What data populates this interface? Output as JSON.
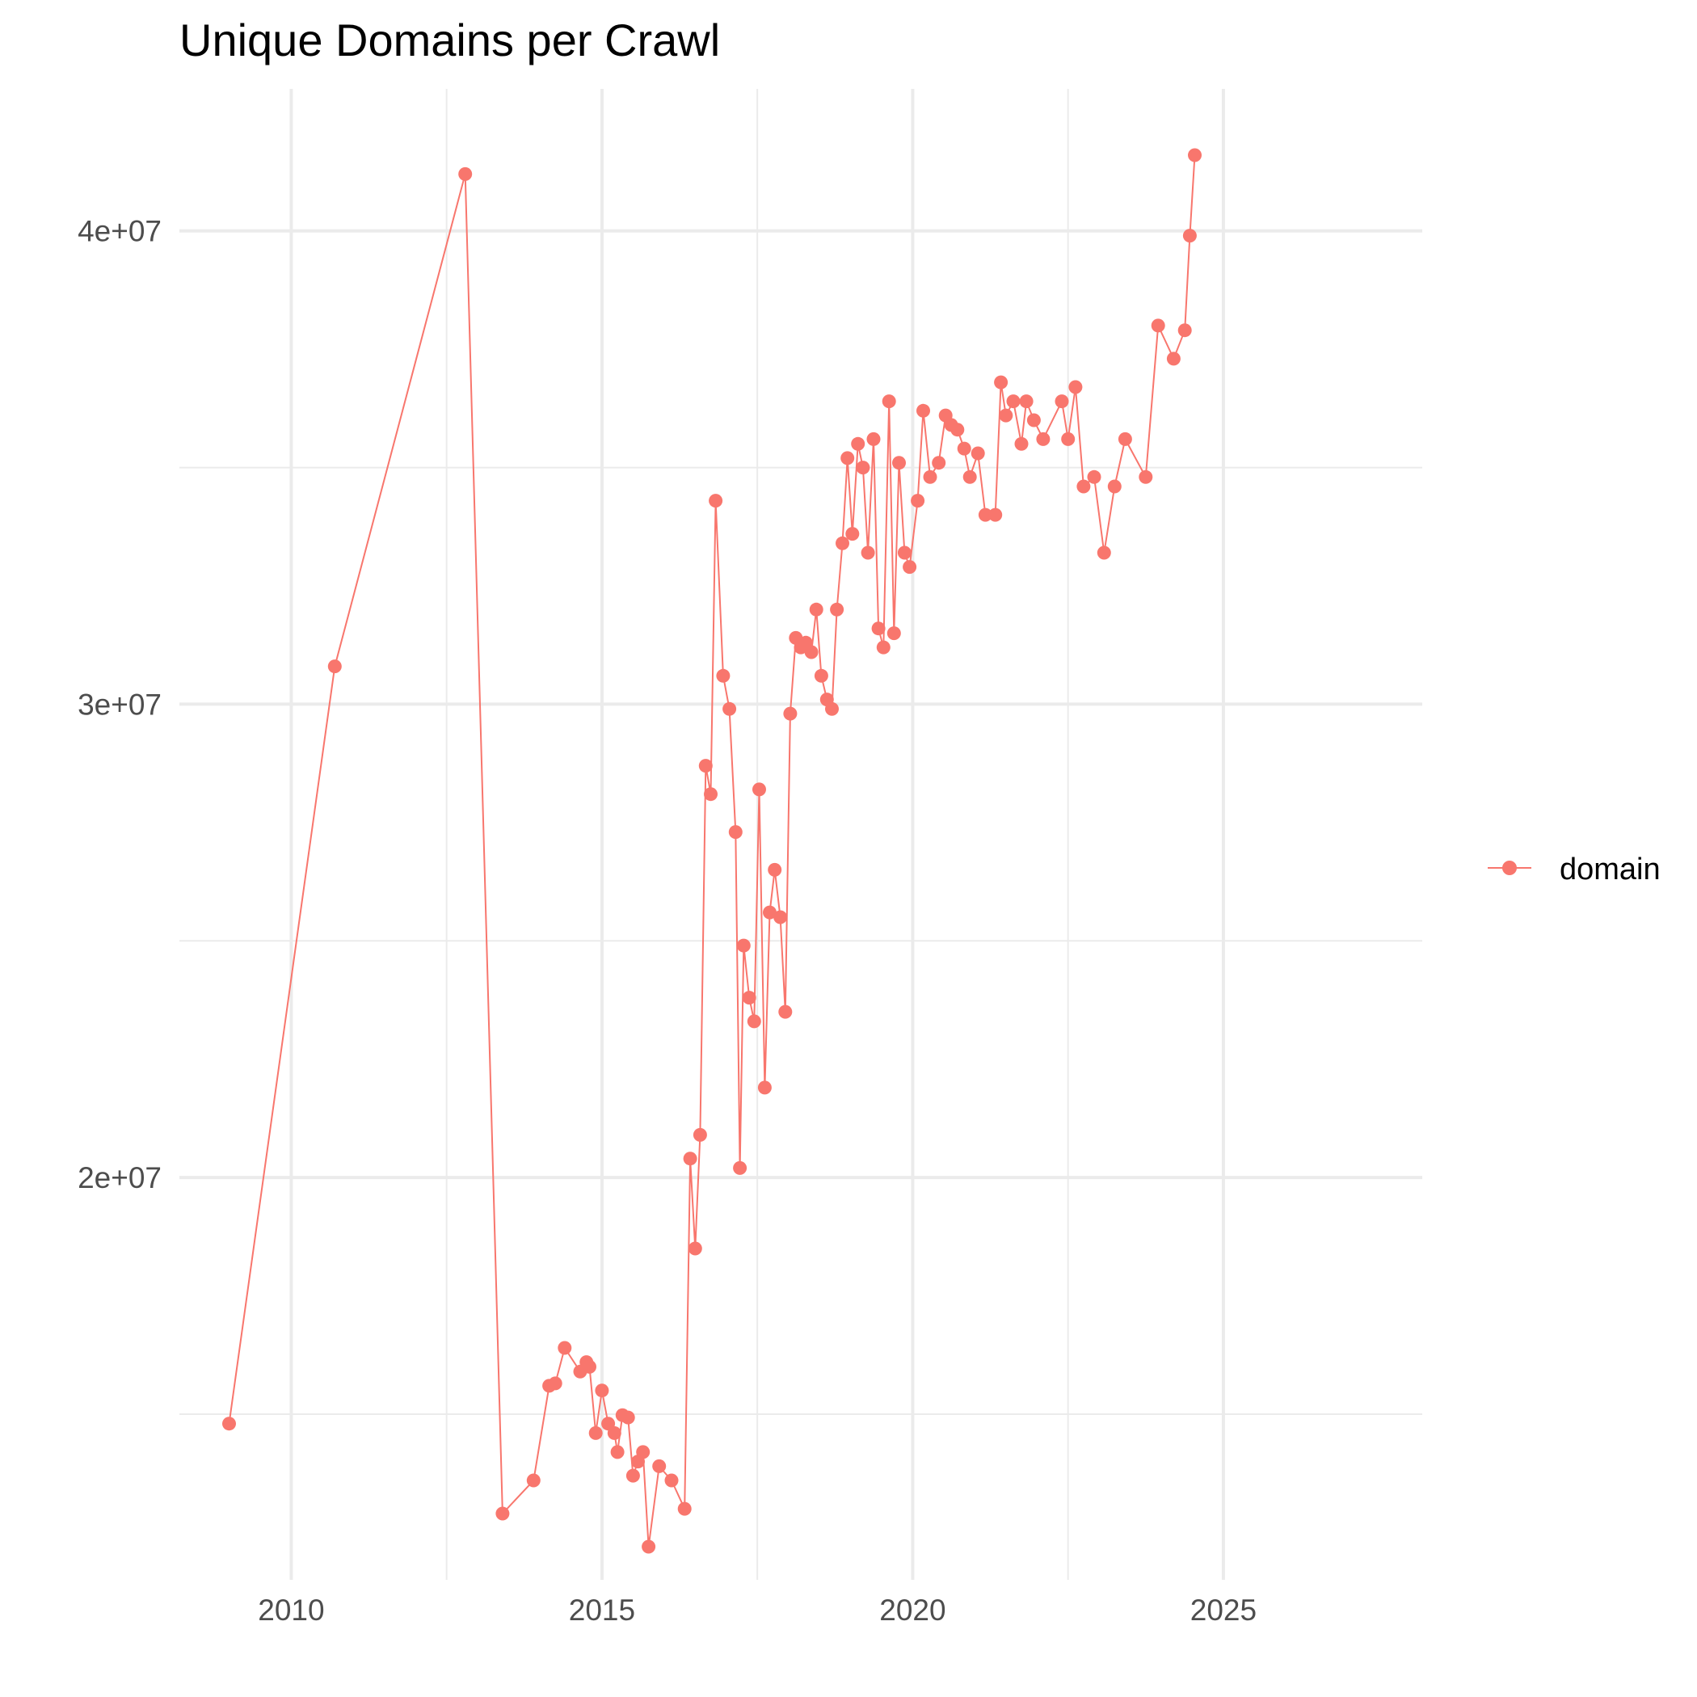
{
  "chart_data": {
    "type": "line",
    "title": "Unique Domains per Crawl",
    "xlabel": "",
    "ylabel": "",
    "xlim": [
      2008.2,
      2028.2
    ],
    "ylim": [
      11500000,
      43000000
    ],
    "x_ticks": [
      2010,
      2015,
      2020,
      2025
    ],
    "x_tick_labels": [
      "2010",
      "2015",
      "2020",
      "2025"
    ],
    "y_ticks": [
      20000000,
      30000000,
      40000000
    ],
    "y_tick_labels": [
      "2e+07",
      "3e+07",
      "4e+07"
    ],
    "grid": true,
    "legend_position": "right",
    "colors": {
      "series": "#f8766d",
      "grid": "#ebebeb",
      "tick_text": "#4d4d4d"
    },
    "series": [
      {
        "name": "domain",
        "x": [
          2009.0,
          2010.7,
          2012.8,
          2013.4,
          2013.9,
          2014.15,
          2014.25,
          2014.4,
          2014.65,
          2014.75,
          2014.8,
          2014.9,
          2015.0,
          2015.1,
          2015.2,
          2015.25,
          2015.33,
          2015.42,
          2015.5,
          2015.58,
          2015.66,
          2015.75,
          2015.92,
          2016.12,
          2016.33,
          2016.42,
          2016.5,
          2016.58,
          2016.67,
          2016.75,
          2016.83,
          2016.95,
          2017.05,
          2017.15,
          2017.22,
          2017.28,
          2017.37,
          2017.45,
          2017.53,
          2017.62,
          2017.7,
          2017.78,
          2017.87,
          2017.95,
          2018.03,
          2018.12,
          2018.2,
          2018.28,
          2018.37,
          2018.45,
          2018.53,
          2018.62,
          2018.7,
          2018.78,
          2018.87,
          2018.95,
          2019.03,
          2019.12,
          2019.2,
          2019.28,
          2019.37,
          2019.45,
          2019.53,
          2019.62,
          2019.7,
          2019.78,
          2019.87,
          2019.95,
          2020.08,
          2020.17,
          2020.28,
          2020.42,
          2020.53,
          2020.62,
          2020.72,
          2020.83,
          2020.92,
          2021.05,
          2021.17,
          2021.33,
          2021.42,
          2021.5,
          2021.62,
          2021.75,
          2021.83,
          2021.95,
          2022.1,
          2022.4,
          2022.5,
          2022.62,
          2022.75,
          2022.92,
          2023.08,
          2023.25,
          2023.42,
          2023.75,
          2023.95,
          2024.2,
          2024.38,
          2024.46,
          2024.54
        ],
        "y": [
          14800000,
          30800000,
          41200000,
          12900000,
          13600000,
          15600000,
          15650000,
          16400000,
          15900000,
          16100000,
          16000000,
          14600000,
          15500000,
          14800000,
          14600000,
          14200000,
          14980000,
          14930000,
          13700000,
          14000000,
          14200000,
          12200000,
          13900000,
          13600000,
          13000000,
          20400000,
          18500000,
          20900000,
          28700000,
          28100000,
          34300000,
          30600000,
          29900000,
          27300000,
          20200000,
          24900000,
          23800000,
          23300000,
          28200000,
          21900000,
          25600000,
          26500000,
          25500000,
          23500000,
          29800000,
          31400000,
          31200000,
          31300000,
          31100000,
          32000000,
          30600000,
          30100000,
          29900000,
          32000000,
          33400000,
          35200000,
          33600000,
          35500000,
          35000000,
          33200000,
          35600000,
          31600000,
          31200000,
          36400000,
          31500000,
          35100000,
          33200000,
          32900000,
          34300000,
          36200000,
          34800000,
          35100000,
          36100000,
          35900000,
          35800000,
          35400000,
          34800000,
          35300000,
          34000000,
          34000000,
          36800000,
          36100000,
          36400000,
          35500000,
          36400000,
          36000000,
          35600000,
          36400000,
          35600000,
          36700000,
          34600000,
          34800000,
          33200000,
          34600000,
          35600000,
          34800000,
          38000000,
          37300000,
          37900000,
          39900000,
          41600000
        ]
      }
    ]
  }
}
